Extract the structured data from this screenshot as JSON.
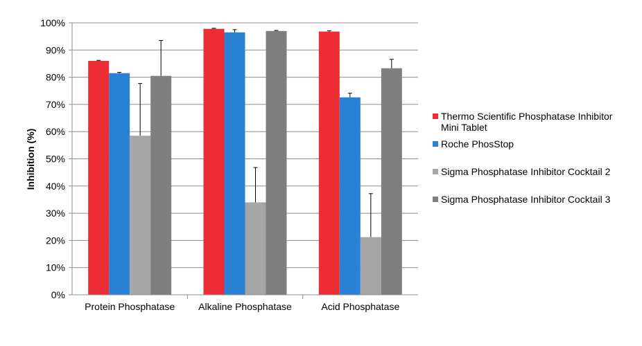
{
  "chart_data": {
    "type": "bar",
    "title": "",
    "xlabel": "",
    "ylabel": "Inhibition (%)",
    "ylim": [
      0,
      100
    ],
    "yticks": [
      "0%",
      "10%",
      "20%",
      "30%",
      "40%",
      "50%",
      "60%",
      "70%",
      "80%",
      "90%",
      "100%"
    ],
    "grid": true,
    "legend_position": "right",
    "categories": [
      "Protein Phosphatase",
      "Alkaline Phosphatase",
      "Acid Phosphatase"
    ],
    "series": [
      {
        "name": "Thermo Scientific Phosphatase Inhibitor Mini Tablet",
        "color": "#ec2d34",
        "values": [
          86,
          97.8,
          96.8
        ],
        "errors": [
          0.2,
          0.2,
          0.3
        ]
      },
      {
        "name": "Roche PhosStop",
        "color": "#2980d4",
        "values": [
          81.5,
          96.5,
          72.6
        ],
        "errors": [
          0.3,
          1.0,
          1.5
        ]
      },
      {
        "name": "Sigma Phosphatase Inhibitor Cocktail 2",
        "color": "#a6a6a6",
        "values": [
          58.5,
          34,
          21.2
        ],
        "errors": [
          19.2,
          12.8,
          16
        ]
      },
      {
        "name": "Sigma Phosphatase Inhibitor Cocktail 3",
        "color": "#7f7f7f",
        "values": [
          80.5,
          97,
          83.3
        ],
        "errors": [
          13,
          0.2,
          3.3
        ]
      }
    ]
  }
}
